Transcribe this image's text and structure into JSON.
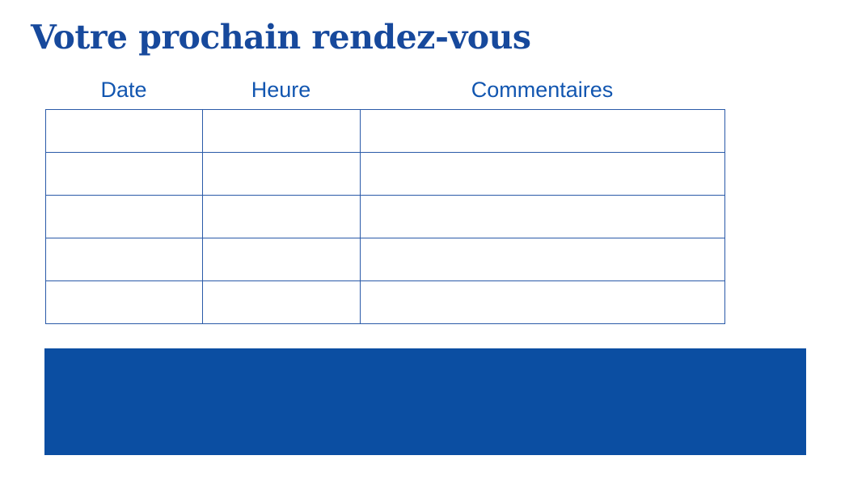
{
  "title": "Votre prochain rendez-vous",
  "colors": {
    "title": "#17499c",
    "header_text": "#1256b0",
    "table_border": "#2a5aa8",
    "banner": "#0b4ea2",
    "background": "#ffffff"
  },
  "table": {
    "columns": [
      "Date",
      "Heure",
      "Commentaires"
    ],
    "rows": [
      [
        "",
        "",
        ""
      ],
      [
        "",
        "",
        ""
      ],
      [
        "",
        "",
        ""
      ],
      [
        "",
        "",
        ""
      ],
      [
        "",
        "",
        ""
      ]
    ]
  },
  "banner": {
    "text": ""
  }
}
